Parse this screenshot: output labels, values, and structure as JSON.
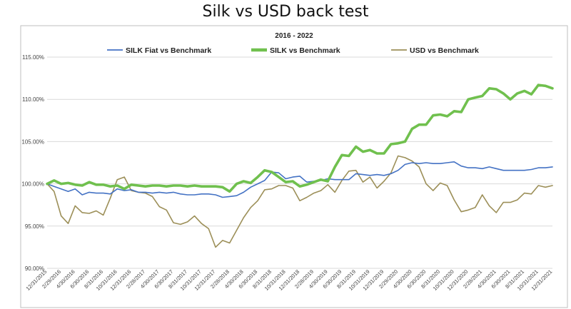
{
  "chart_data": {
    "type": "line",
    "title": "Silk vs USD back test",
    "subtitle": "2016 - 2022",
    "xlabel": "",
    "ylabel": "",
    "ylim": [
      90,
      115
    ],
    "yticks": [
      "90.00%",
      "95.00%",
      "100.00%",
      "105.00%",
      "110.00%",
      "115.00%"
    ],
    "ytick_values": [
      90,
      95,
      100,
      105,
      110,
      115
    ],
    "grid": "horizontal",
    "legend": "top",
    "x": [
      "12/31/2015",
      "1/31/2016",
      "2/29/2016",
      "3/31/2016",
      "4/30/2016",
      "5/31/2016",
      "6/30/2016",
      "7/31/2016",
      "8/31/2016",
      "9/30/2016",
      "10/31/2016",
      "11/30/2016",
      "12/31/2016",
      "1/31/2017",
      "2/28/2017",
      "3/31/2017",
      "4/30/2017",
      "5/31/2017",
      "6/30/2017",
      "7/31/2017",
      "8/31/2017",
      "9/30/2017",
      "10/31/2017",
      "11/30/2017",
      "12/31/2017",
      "1/31/2018",
      "2/28/2018",
      "3/31/2018",
      "4/30/2018",
      "5/31/2018",
      "6/30/2018",
      "7/31/2018",
      "8/31/2018",
      "9/30/2018",
      "10/31/2018",
      "11/30/2018",
      "12/31/2018",
      "1/31/2019",
      "2/28/2019",
      "3/31/2019",
      "4/30/2019",
      "5/31/2019",
      "6/30/2019",
      "7/31/2019",
      "8/31/2019",
      "9/30/2019",
      "10/31/2019",
      "11/30/2019",
      "12/31/2019",
      "1/31/2020",
      "2/29/2020",
      "3/31/2020",
      "4/30/2020",
      "5/31/2020",
      "6/30/2020",
      "7/31/2020",
      "8/31/2020",
      "9/30/2020",
      "10/31/2020",
      "11/30/2020",
      "12/31/2020",
      "1/31/2021",
      "2/28/2021",
      "3/31/2021",
      "4/30/2021",
      "5/31/2021",
      "6/30/2021",
      "7/31/2021",
      "8/31/2021",
      "9/30/2021",
      "10/31/2021",
      "11/30/2021",
      "12/31/2021"
    ],
    "xtick_labels": [
      "12/31/2015",
      "2/29/2016",
      "4/30/2016",
      "6/30/2016",
      "8/31/2016",
      "10/31/2016",
      "12/31/2016",
      "2/28/2017",
      "4/30/2017",
      "6/30/2017",
      "8/31/2017",
      "10/31/2017",
      "12/31/2017",
      "2/28/2018",
      "4/30/2018",
      "6/30/2018",
      "8/31/2018",
      "10/31/2018",
      "12/31/2018",
      "2/28/2019",
      "4/30/2019",
      "6/30/2019",
      "8/31/2019",
      "10/31/2019",
      "12/31/2019",
      "2/29/2020",
      "4/30/2020",
      "6/30/2020",
      "8/31/2020",
      "10/31/2020",
      "12/31/2020",
      "2/28/2021",
      "4/30/2021",
      "6/30/2021",
      "8/31/2021",
      "10/31/2021",
      "12/31/2021"
    ],
    "series": [
      {
        "name": "SILK Fiat vs Benchmark",
        "color": "#4472c4",
        "values": [
          100.0,
          99.7,
          99.4,
          99.1,
          99.4,
          98.7,
          99.0,
          98.9,
          98.9,
          98.8,
          99.4,
          99.2,
          99.3,
          99.0,
          99.0,
          98.9,
          99.0,
          98.9,
          99.0,
          98.8,
          98.7,
          98.7,
          98.8,
          98.8,
          98.7,
          98.4,
          98.5,
          98.6,
          99.0,
          99.6,
          100.0,
          100.4,
          101.4,
          101.3,
          100.6,
          100.8,
          100.9,
          100.2,
          100.3,
          100.4,
          100.6,
          100.5,
          100.5,
          100.5,
          101.2,
          101.1,
          101.0,
          101.1,
          101.0,
          101.2,
          101.6,
          102.3,
          102.5,
          102.4,
          102.5,
          102.4,
          102.4,
          102.5,
          102.6,
          102.1,
          101.9,
          101.9,
          101.8,
          102.0,
          101.8,
          101.6,
          101.6,
          101.6,
          101.6,
          101.7,
          101.9,
          101.9,
          102.0
        ]
      },
      {
        "name": "SILK  vs Benchmark",
        "color": "#70c04e",
        "values": [
          100.0,
          100.4,
          100.0,
          100.1,
          99.9,
          99.8,
          100.2,
          99.9,
          99.9,
          99.7,
          99.8,
          99.4,
          99.9,
          99.8,
          99.7,
          99.8,
          99.8,
          99.7,
          99.8,
          99.8,
          99.7,
          99.8,
          99.7,
          99.7,
          99.7,
          99.6,
          99.1,
          100.0,
          100.3,
          100.1,
          100.8,
          101.6,
          101.4,
          100.8,
          100.2,
          100.3,
          99.7,
          99.9,
          100.2,
          100.5,
          100.3,
          102.0,
          103.4,
          103.3,
          104.4,
          103.8,
          104.0,
          103.6,
          103.6,
          104.7,
          104.8,
          105.0,
          106.5,
          107.0,
          107.0,
          108.1,
          108.2,
          108.0,
          108.6,
          108.5,
          110.0,
          110.2,
          110.4,
          111.3,
          111.2,
          110.7,
          110.0,
          110.7,
          111.0,
          110.6,
          111.7,
          111.6,
          111.3
        ]
      },
      {
        "name": "USD vs Benchmark",
        "color": "#9c8f58",
        "values": [
          100.0,
          99.1,
          96.2,
          95.3,
          97.4,
          96.6,
          96.5,
          96.8,
          96.3,
          98.3,
          100.5,
          100.8,
          99.2,
          99.0,
          98.9,
          98.5,
          97.3,
          96.9,
          95.4,
          95.2,
          95.5,
          96.2,
          95.3,
          94.7,
          92.5,
          93.3,
          93.0,
          94.5,
          96.0,
          97.2,
          98.0,
          99.3,
          99.4,
          99.8,
          99.8,
          99.5,
          98.0,
          98.4,
          98.9,
          99.2,
          99.9,
          99.0,
          100.4,
          101.5,
          101.6,
          100.2,
          100.8,
          99.5,
          100.3,
          101.3,
          103.3,
          103.1,
          102.7,
          102.0,
          100.0,
          99.2,
          100.1,
          99.8,
          98.1,
          96.7,
          96.9,
          97.2,
          98.7,
          97.4,
          96.6,
          97.8,
          97.8,
          98.1,
          98.9,
          98.8,
          99.8,
          99.6,
          99.8
        ]
      }
    ]
  }
}
